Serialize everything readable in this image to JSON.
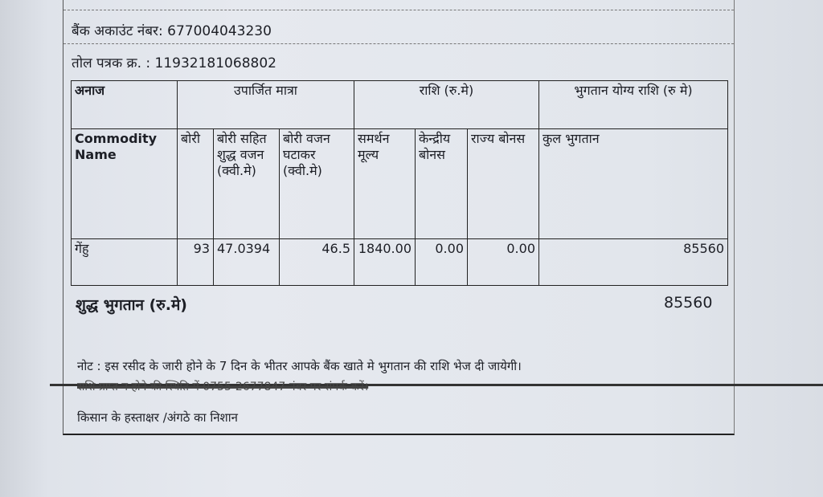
{
  "bank_account": {
    "label": "बैंक अकाउंट नंबर:",
    "value": "677004043230"
  },
  "weigh_slip": {
    "label": "तोल पत्रक क्र. :",
    "value": "11932181068802"
  },
  "table": {
    "group_headers": [
      "अनाज",
      "उपार्जित मात्रा",
      "राशि (रु.मे)",
      "भुगतान योग्य राशि (रु मे)"
    ],
    "columns": [
      "Commodity Name",
      "बोरी",
      "बोरी सहित शुद्ध वजन (क्वी.मे)",
      "बोरी वजन घटाकर (क्वी.मे)",
      "समर्थन मूल्य",
      "केन्द्रीय बोनस",
      "राज्य बोनस",
      "कुल भुगतान"
    ],
    "rows": [
      [
        "गेंहु",
        "93",
        "47.0394",
        "46.5",
        "1840.00",
        "0.00",
        "0.00",
        "85560"
      ]
    ]
  },
  "net_payment": {
    "label": "शुद्ध भुगतान (रु.मे)",
    "value": "85560"
  },
  "note": "नोट : इस रसीद के जारी होने के 7 दिन के भीतर आपके बैंक खाते मे भुगतान की राशि भेज दी जायेगी।",
  "struck_note": "राशि प्राप्त न होने की स्थिति में 0755-2677847 नंबर पर संपर्क करें।",
  "signature_label": "किसान के हस्ताक्षर /अंगठे का निशान"
}
